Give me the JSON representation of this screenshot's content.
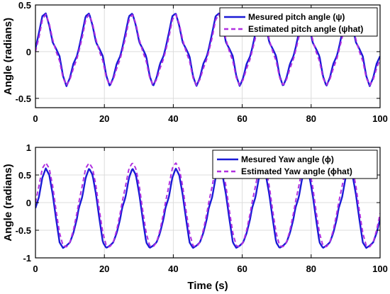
{
  "chart_data": [
    {
      "type": "line",
      "title": "",
      "xlabel": "",
      "ylabel": "Angle (radians)",
      "xlim": [
        0,
        100
      ],
      "ylim": [
        -0.6,
        0.5
      ],
      "xticks": [
        0,
        20,
        40,
        60,
        80,
        100
      ],
      "yticks": [
        -0.5,
        0,
        0.5
      ],
      "ytick_labels": [
        "-0.5",
        "0",
        "0.5"
      ],
      "grid": true,
      "legend_position": "top-right",
      "period": 12.57,
      "series": [
        {
          "name": "Mesured pitch angle (ψ)",
          "color": "#1a1ad6",
          "style": "solid",
          "phase_x": [
            0,
            1,
            2,
            3,
            4,
            5,
            6,
            7,
            8,
            9,
            10,
            11,
            12,
            12.57
          ],
          "phase_y": [
            0.03,
            0.2,
            0.38,
            0.41,
            0.28,
            0.1,
            0.03,
            -0.05,
            -0.26,
            -0.37,
            -0.28,
            -0.13,
            -0.05,
            0.03
          ]
        },
        {
          "name": "Estimated pitch angle (ψhat)",
          "color": "#b030e0",
          "style": "dashed",
          "phase_x": [
            0,
            1,
            2,
            3,
            4,
            5,
            6,
            7,
            8,
            9,
            10,
            11,
            12,
            12.57
          ],
          "phase_y": [
            0.0,
            0.15,
            0.34,
            0.4,
            0.3,
            0.13,
            0.0,
            -0.1,
            -0.28,
            -0.36,
            -0.3,
            -0.18,
            -0.08,
            0.0
          ]
        }
      ]
    },
    {
      "type": "line",
      "title": "",
      "xlabel": "Time (s)",
      "ylabel": "Angle (radians)",
      "xlim": [
        0,
        100
      ],
      "ylim": [
        -1,
        1
      ],
      "xticks": [
        0,
        20,
        40,
        60,
        80,
        100
      ],
      "yticks": [
        -1,
        -0.5,
        0,
        0.5,
        1
      ],
      "ytick_labels": [
        "-1",
        "-0.5",
        "0",
        "0.5",
        "1"
      ],
      "grid": true,
      "legend_position": "top-right",
      "period": 12.57,
      "series": [
        {
          "name": "Mesured Yaw angle (ϕ)",
          "color": "#1a1ad6",
          "style": "solid",
          "phase_x": [
            0,
            1,
            2,
            3,
            4,
            5,
            6,
            7,
            8,
            9,
            10,
            11,
            12,
            12.57
          ],
          "phase_y": [
            -0.1,
            0.1,
            0.45,
            0.62,
            0.5,
            0.15,
            -0.3,
            -0.72,
            -0.82,
            -0.78,
            -0.72,
            -0.55,
            -0.3,
            -0.1
          ]
        },
        {
          "name": "Estimated Yaw angle (ϕhat)",
          "color": "#b030e0",
          "style": "dashed",
          "phase_x": [
            0,
            1,
            2,
            3,
            4,
            5,
            6,
            7,
            8,
            9,
            10,
            11,
            12,
            12.57
          ],
          "phase_y": [
            0.0,
            0.3,
            0.62,
            0.72,
            0.62,
            0.3,
            -0.15,
            -0.55,
            -0.78,
            -0.8,
            -0.72,
            -0.5,
            -0.2,
            0.0
          ]
        }
      ]
    }
  ]
}
